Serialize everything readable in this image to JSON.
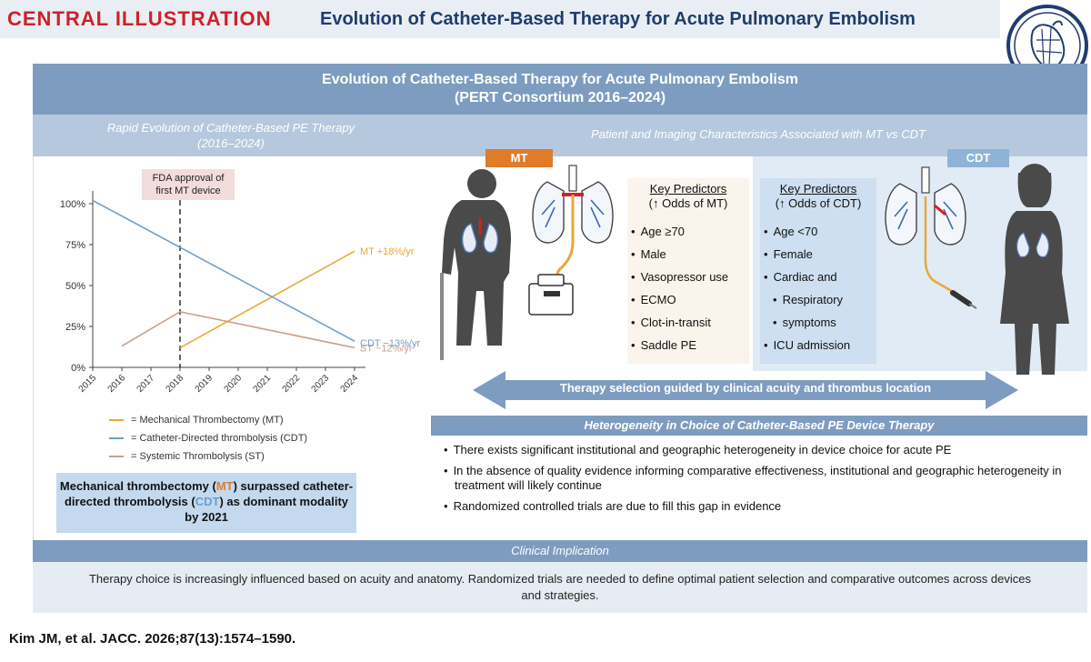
{
  "header": {
    "label": "CENTRAL ILLUSTRATION",
    "title": "Evolution of Catheter-Based Therapy for Acute Pulmonary Embolism"
  },
  "main": {
    "title_line1": "Evolution of Catheter-Based Therapy for Acute Pulmonary Embolism",
    "title_line2": "(PERT Consortium 2016–2024)"
  },
  "left": {
    "subhead_line1": "Rapid Evolution of Catheter-Based PE Therapy",
    "subhead_line2": "(2016–2024)",
    "fda_line1": "FDA approval of",
    "fda_line2": "first MT device",
    "callout": {
      "p1": "Mechanical thrombectomy (",
      "mt": "MT",
      "p2": ") surpassed catheter-directed thrombolysis (",
      "cdt": "CDT",
      "p3": ") as dominant modality by 2021"
    }
  },
  "chart_data": {
    "type": "line",
    "title": "",
    "xlabel": "",
    "ylabel": "",
    "x": [
      "2015",
      "2016",
      "2017",
      "2018",
      "2019",
      "2020",
      "2021",
      "2022",
      "2023",
      "2024"
    ],
    "ylim": [
      0,
      100
    ],
    "y_ticks": [
      "0%",
      "25%",
      "50%",
      "75%",
      "100%"
    ],
    "y_tick_values": [
      0,
      25,
      50,
      75,
      100
    ],
    "annotation_year": "2018",
    "series": [
      {
        "name": "= Mechanical Thrombectomy (MT)",
        "color": "#e8a838",
        "points": [
          [
            "2018",
            12
          ],
          [
            "2024",
            71
          ]
        ],
        "end_label": "MT +18%/yr"
      },
      {
        "name": "= Catheter-Directed thrombolysis (CDT)",
        "color": "#6f9ec6",
        "points": [
          [
            "2015",
            102
          ],
          [
            "2024",
            16
          ]
        ],
        "end_label": "CDT −13%/yr"
      },
      {
        "name": "= Systemic Thrombolysis (ST)",
        "color": "#c9a08a",
        "points": [
          [
            "2016",
            13
          ],
          [
            "2018",
            34
          ],
          [
            "2024",
            12
          ]
        ],
        "end_label": "ST −12%/yr"
      }
    ]
  },
  "right": {
    "subhead": "Patient and Imaging Characteristics Associated with MT vs CDT",
    "mt_tag": "MT",
    "cdt_tag": "CDT",
    "mt_predictors": {
      "title": "Key Predictors",
      "subtitle": "(↑ Odds of MT)",
      "items": [
        "Age ≥70",
        "Male",
        "Vasopressor use",
        "ECMO",
        "Clot-in-transit",
        "Saddle PE"
      ]
    },
    "cdt_predictors": {
      "title": "Key Predictors",
      "subtitle": "(↑ Odds of CDT)",
      "items": [
        "Age <70",
        "Female",
        "Cardiac and",
        "Respiratory",
        "symptoms",
        "ICU admission"
      ]
    },
    "arrow_text": "Therapy selection guided by clinical acuity and thrombus location",
    "hetero_title": "Heterogeneity in Choice of Catheter-Based PE Device Therapy",
    "hetero_items": [
      "There exists significant institutional and geographic heterogeneity in device choice for acute PE",
      "In the absence of quality evidence informing comparative effectiveness, institutional and geographic heterogeneity in treatment will likely continue",
      "Randomized controlled trials are due to fill this gap in evidence"
    ]
  },
  "clinical": {
    "title": "Clinical Implication",
    "text": "Therapy choice is increasingly influenced based on acuity and anatomy. Randomized trials are needed to define optimal patient selection and comparative outcomes across devices and strategies."
  },
  "citation": "Kim JM, et al. JACC. 2026;87(13):1574–1590.",
  "colors": {
    "band": "#7e9cc0",
    "subband": "#b5c8dd",
    "mt": "#e07b2a",
    "cdt": "#8fb3d6",
    "red": "#d0202a"
  }
}
